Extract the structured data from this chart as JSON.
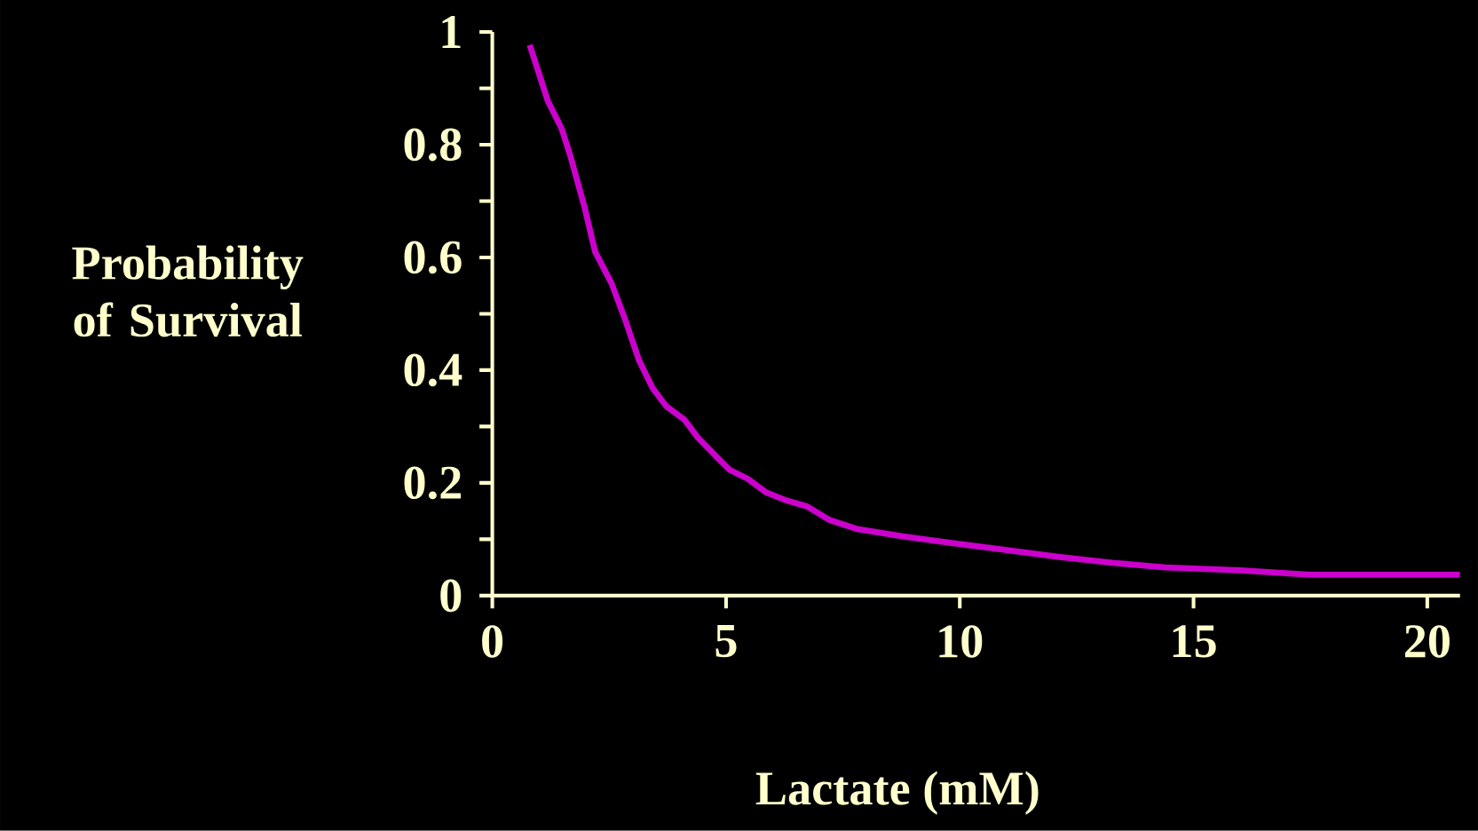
{
  "chart_data": {
    "type": "line",
    "xlabel": "Lactate (mM)",
    "ylabel": "Probability of Survival",
    "x": [
      0.8,
      1.19,
      1.48,
      1.67,
      1.97,
      2.2,
      2.55,
      2.84,
      3.14,
      3.43,
      3.72,
      4.11,
      4.4,
      4.79,
      5.08,
      5.47,
      5.86,
      6.25,
      6.74,
      7.22,
      7.81,
      8.78,
      9.76,
      10.9,
      12.1,
      13.3,
      14.4,
      16,
      17.5,
      20.7
    ],
    "series": [
      {
        "color": "#cc00cc",
        "values": [
          0.977,
          0.877,
          0.829,
          0.78,
          0.69,
          0.61,
          0.554,
          0.49,
          0.417,
          0.368,
          0.336,
          0.312,
          0.28,
          0.247,
          0.223,
          0.207,
          0.183,
          0.17,
          0.158,
          0.134,
          0.118,
          0.105,
          0.094,
          0.082,
          0.069,
          0.058,
          0.05,
          0.045,
          0.037,
          0.037
        ]
      }
    ],
    "xlim": [
      0,
      20.7
    ],
    "ylim": [
      0,
      1
    ],
    "xticks": [
      0,
      5,
      10,
      15,
      20
    ],
    "yticks": [
      0,
      {
        "value": 0.1,
        "label": null
      },
      0.2,
      {
        "value": 0.3,
        "label": null
      },
      0.4,
      {
        "value": 0.5,
        "label": null
      },
      0.6,
      {
        "value": 0.7,
        "label": null
      },
      0.8,
      {
        "value": 0.9,
        "label": null
      },
      1
    ],
    "grid": false,
    "marker": "none",
    "line_style": "solid"
  }
}
